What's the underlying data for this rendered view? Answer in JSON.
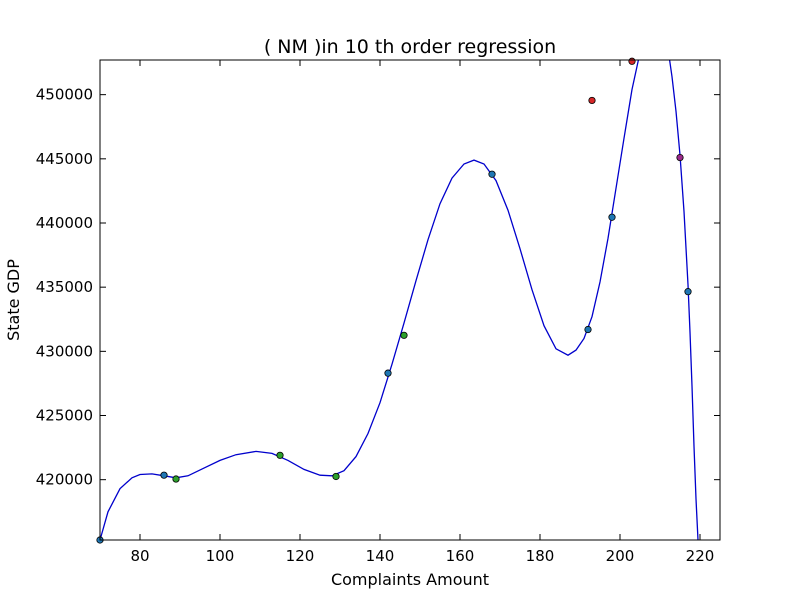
{
  "chart_data": {
    "type": "scatter",
    "title": "(  NM  )in 10 th order regression",
    "xlabel": "Complaints Amount",
    "ylabel": "State GDP",
    "xlim": [
      70,
      225
    ],
    "ylim": [
      415300,
      452700
    ],
    "xticks": [
      80,
      100,
      120,
      140,
      160,
      180,
      200,
      220
    ],
    "yticks": [
      420000,
      425000,
      430000,
      435000,
      440000,
      445000,
      450000
    ],
    "grid": false,
    "colors": {
      "fit_line": "#0000cc",
      "point_a": "#1f77b4",
      "point_b": "#2ca02c",
      "point_red": "#d62728",
      "point_mixed": "#9b2a8a"
    },
    "series": [
      {
        "kind": "points",
        "points": [
          {
            "x": 70,
            "y": 415300,
            "color": "#1f77b4"
          },
          {
            "x": 86,
            "y": 420350,
            "color": "#1f77b4"
          },
          {
            "x": 89,
            "y": 420050,
            "color": "#2ca02c"
          },
          {
            "x": 115,
            "y": 421900,
            "color": "#2ca02c"
          },
          {
            "x": 129,
            "y": 420250,
            "color": "#2ca02c"
          },
          {
            "x": 142,
            "y": 428300,
            "color": "#1f77b4"
          },
          {
            "x": 146,
            "y": 431250,
            "color": "#2ca02c"
          },
          {
            "x": 168,
            "y": 443800,
            "color": "#1f77b4"
          },
          {
            "x": 192,
            "y": 431700,
            "color": "#1f77b4"
          },
          {
            "x": 193,
            "y": 449550,
            "color": "#d62728"
          },
          {
            "x": 198,
            "y": 440450,
            "color": "#1f77b4"
          },
          {
            "x": 203,
            "y": 452600,
            "color": "#d62728"
          },
          {
            "x": 215,
            "y": 445100,
            "color": "#9b2a8a"
          },
          {
            "x": 217,
            "y": 434650,
            "color": "#1f77b4"
          }
        ]
      },
      {
        "kind": "curve",
        "points": [
          {
            "x": 70,
            "y": 415300
          },
          {
            "x": 72,
            "y": 417500
          },
          {
            "x": 75,
            "y": 419300
          },
          {
            "x": 78,
            "y": 420150
          },
          {
            "x": 80,
            "y": 420400
          },
          {
            "x": 83,
            "y": 420450
          },
          {
            "x": 86,
            "y": 420300
          },
          {
            "x": 89,
            "y": 420150
          },
          {
            "x": 92,
            "y": 420300
          },
          {
            "x": 96,
            "y": 420900
          },
          {
            "x": 100,
            "y": 421500
          },
          {
            "x": 104,
            "y": 421950
          },
          {
            "x": 109,
            "y": 422200
          },
          {
            "x": 113,
            "y": 422050
          },
          {
            "x": 117,
            "y": 421500
          },
          {
            "x": 121,
            "y": 420800
          },
          {
            "x": 125,
            "y": 420350
          },
          {
            "x": 128,
            "y": 420300
          },
          {
            "x": 131,
            "y": 420700
          },
          {
            "x": 134,
            "y": 421800
          },
          {
            "x": 137,
            "y": 423600
          },
          {
            "x": 140,
            "y": 426000
          },
          {
            "x": 143,
            "y": 429000
          },
          {
            "x": 146,
            "y": 432200
          },
          {
            "x": 149,
            "y": 435500
          },
          {
            "x": 152,
            "y": 438700
          },
          {
            "x": 155,
            "y": 441500
          },
          {
            "x": 158,
            "y": 443500
          },
          {
            "x": 161,
            "y": 444600
          },
          {
            "x": 163.5,
            "y": 444900
          },
          {
            "x": 166,
            "y": 444600
          },
          {
            "x": 169,
            "y": 443300
          },
          {
            "x": 172,
            "y": 441000
          },
          {
            "x": 175,
            "y": 438000
          },
          {
            "x": 178,
            "y": 434800
          },
          {
            "x": 181,
            "y": 432000
          },
          {
            "x": 184,
            "y": 430200
          },
          {
            "x": 187,
            "y": 429700
          },
          {
            "x": 189,
            "y": 430100
          },
          {
            "x": 191,
            "y": 431000
          },
          {
            "x": 193,
            "y": 432700
          },
          {
            "x": 195,
            "y": 435400
          },
          {
            "x": 197,
            "y": 438800
          },
          {
            "x": 199,
            "y": 442700
          },
          {
            "x": 201,
            "y": 446600
          },
          {
            "x": 203,
            "y": 450400
          },
          {
            "x": 204.6,
            "y": 452700
          }
        ]
      },
      {
        "kind": "curve",
        "points": [
          {
            "x": 212.4,
            "y": 452700
          },
          {
            "x": 213,
            "y": 451400
          },
          {
            "x": 214,
            "y": 448700
          },
          {
            "x": 215,
            "y": 445300
          },
          {
            "x": 216,
            "y": 440900
          },
          {
            "x": 217,
            "y": 435200
          },
          {
            "x": 217.5,
            "y": 431500
          },
          {
            "x": 218,
            "y": 427300
          },
          {
            "x": 218.5,
            "y": 422600
          },
          {
            "x": 219,
            "y": 418500
          },
          {
            "x": 219.5,
            "y": 415300
          }
        ]
      }
    ]
  }
}
